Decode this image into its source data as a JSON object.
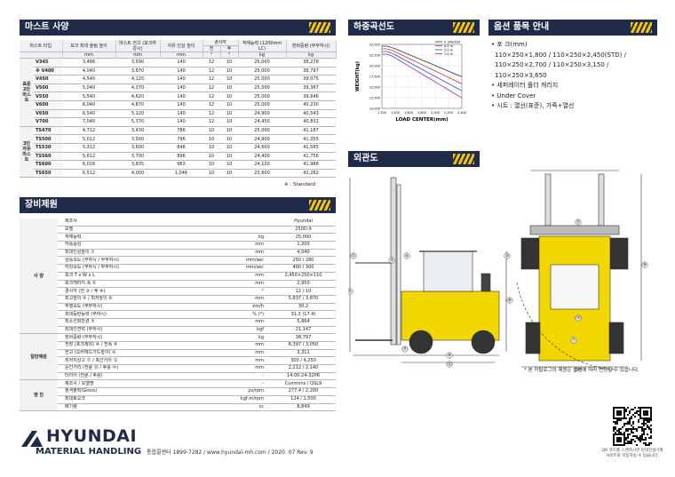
{
  "mast_spec": {
    "title": "마스트 사양",
    "headers": [
      "마스트 타입",
      "포크 최대 올림 높이",
      "마스트 전고 (포크하강시)",
      "자유 인상 높이",
      "경사각",
      "적재능력 (1200mm LC)",
      "장비중량 (무부하시)"
    ],
    "tilt": [
      "전",
      "후"
    ],
    "units": [
      "mm",
      "mm",
      "mm",
      "°",
      "°",
      "kg",
      "kg"
    ],
    "groups": [
      {
        "label": "표준 2단 마스트",
        "rows": [
          [
            "V345",
            "3,486",
            "3,590",
            "140",
            "12",
            "10",
            "25,000",
            "38,278"
          ],
          [
            "※ V400",
            "4,040",
            "3,870",
            "140",
            "12",
            "10",
            "25,000",
            "38,797"
          ],
          [
            "V450",
            "4,540",
            "4,120",
            "140",
            "12",
            "10",
            "25,000",
            "39,075"
          ],
          [
            "V500",
            "5,040",
            "4,370",
            "140",
            "12",
            "10",
            "25,000",
            "39,367"
          ],
          [
            "V550",
            "5,540",
            "4,620",
            "140",
            "12",
            "10",
            "25,000",
            "39,646"
          ],
          [
            "V600",
            "6,040",
            "4,870",
            "140",
            "12",
            "10",
            "25,000",
            "40,230"
          ],
          [
            "V650",
            "6,540",
            "5,120",
            "140",
            "12",
            "10",
            "24,900",
            "40,543"
          ],
          [
            "V700",
            "7,040",
            "5,370",
            "140",
            "12",
            "10",
            "24,450",
            "40,832"
          ]
        ]
      },
      {
        "label": "3단 자유 마스트",
        "rows": [
          [
            "TS470",
            "4,712",
            "3,430",
            "786",
            "10",
            "10",
            "25,000",
            "41,187"
          ],
          [
            "TS500",
            "5,012",
            "3,500",
            "796",
            "10",
            "10",
            "24,900",
            "41,355"
          ],
          [
            "TS530",
            "5,312",
            "3,600",
            "846",
            "10",
            "10",
            "24,600",
            "41,585"
          ],
          [
            "TS560",
            "5,612",
            "3,700",
            "896",
            "10",
            "10",
            "24,400",
            "41,756"
          ],
          [
            "TS600",
            "6,016",
            "3,835",
            "963",
            "10",
            "10",
            "24,100",
            "41,988"
          ],
          [
            "TS650",
            "6,512",
            "4,000",
            "1,046",
            "10",
            "10",
            "23,600",
            "42,282"
          ]
        ]
      }
    ],
    "note": "※ : Standard"
  },
  "spec": {
    "title": "장비제원",
    "groups": [
      {
        "label": "사 양",
        "rows": [
          [
            "제조사",
            null,
            "Hyundai"
          ],
          [
            "모델",
            null,
            "250D-9"
          ],
          [
            "적재능력",
            "kg",
            "25,000"
          ],
          [
            "하중중심",
            "mm",
            "1,200"
          ],
          [
            "최대인상높이 ①",
            "mm",
            "4,040"
          ],
          [
            "상승속도 (부하시 / 무부하시)",
            "mm/sec",
            "250 / 280"
          ],
          [
            "하강속도 (부하시 / 무부하시)",
            "mm/sec",
            "400 / 300"
          ],
          [
            "포크 T x W x L",
            "mm",
            "2,450×250×110"
          ],
          [
            "포크캐리지 폭 ②",
            "mm",
            "2,950"
          ],
          [
            "경사각 (전 ③ / 후 ④)",
            "°",
            "12 / 10"
          ],
          [
            "최고높이 ⑤ / 최저높이 ⑥",
            "mm",
            "5,837 / 3,870"
          ],
          [
            "주행속도 (무부하시)",
            "km/h",
            "30.2"
          ],
          [
            "최대등판능력 (부하시)",
            "% (°)",
            "31.3 (17.4)"
          ],
          [
            "최소선회반경 ⑦",
            "mm",
            "5,864"
          ],
          [
            "최대인견력 (부하시)",
            "kgf",
            "21,147"
          ]
        ]
      },
      {
        "label": "일반제원",
        "rows": [
          [
            "장비중량 (무부하시)",
            "kg",
            "38,797"
          ],
          [
            "전장 (포크제외) ⑧ / 전폭 ⑨",
            "mm",
            "6,397 / 3,050"
          ],
          [
            "전고 (오버헤드가드높이) ⑩",
            "mm",
            "3,311"
          ],
          [
            "최저지상고 ⑪ / 축간거리 ⑫",
            "mm",
            "300 / 4,250"
          ],
          [
            "윤간거리 (전륜 ⑬ / 후륜 ⑭)",
            "mm",
            "2,212 / 2,140"
          ],
          [
            "타이어 (전륜 / 후륜)",
            "-",
            "14.00-24-32PR"
          ]
        ]
      },
      {
        "label": "엔 진",
        "rows": [
          [
            "제조사 / 모델명",
            "-",
            "Cummins / QSL9"
          ],
          [
            "정격출력(Gross)",
            "ps/rpm",
            "277.4 / 2,200"
          ],
          [
            "최대토오크",
            "kgf·m/rpm",
            "124 / 1,500"
          ],
          [
            "배기량",
            "cc",
            "8,849"
          ]
        ]
      }
    ]
  },
  "load_chart": {
    "title": "하중곡선도",
    "y_label": "WEIGHT(kg)",
    "x_label": "LOAD CENTER(mm)",
    "y_ticks": [
      "25,000",
      "22,500",
      "20,000",
      "17,500",
      "15,000",
      "12,500",
      "10,000"
    ],
    "x_ticks": [
      "1,200",
      "1,400",
      "1,600",
      "1,800",
      "2,000",
      "2,200",
      "2,400"
    ],
    "legend": [
      {
        "name": "V 345/400",
        "color": "#333333"
      },
      {
        "name": "4.5 m",
        "color": "#d62a2a"
      },
      {
        "name": "5.0 m",
        "color": "#2a4fd6"
      },
      {
        "name": "7.0 m",
        "color": "#9b2fa8"
      }
    ]
  },
  "options": {
    "title": "옵션 품목 안내",
    "items": [
      "• 포 크(mm)",
      "110×250×1,800 / 110×250×2,450(STD) /",
      "110×250×2,700 / 110×250×3,150 /",
      "110×250×3,650",
      "• 세퍼레이터 폴더 캐리지",
      "• Under Cover",
      "• 시트 : 열선(표준), 가죽+열선"
    ]
  },
  "drawing": {
    "title": "외관도",
    "callouts": [
      "①",
      "②",
      "③",
      "④",
      "⑤",
      "⑥",
      "⑦",
      "⑧",
      "⑨",
      "⑩",
      "⑪",
      "⑫",
      "⑬",
      "⑭"
    ],
    "note": "* 본 카탈로그의 제원은 옵션에 따라 변경될 수 있습니다."
  },
  "footer": {
    "brand": "HYUNDAI",
    "sub": "MATERIAL HANDLING",
    "contact": "통합콜센터 1899-7282 / www.hyundai-mh.com / 2020. 07 Rev. 9",
    "qr_caption": [
      "QR 코드를 스캔하시면 현대건설기계",
      "사이트로 이동하실 수 있습니다."
    ]
  }
}
